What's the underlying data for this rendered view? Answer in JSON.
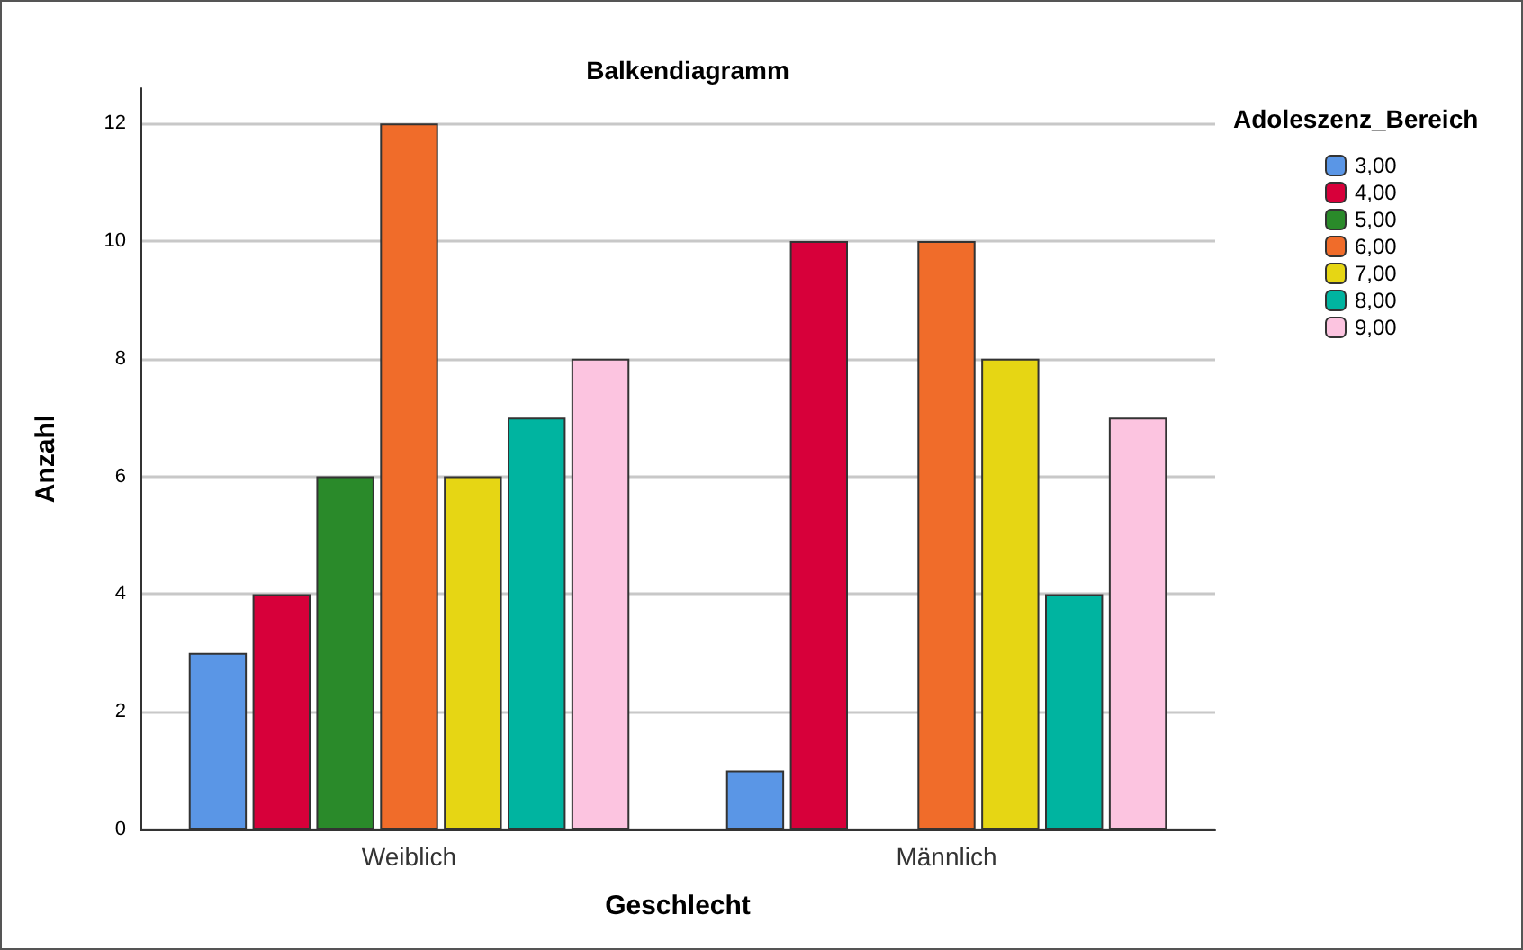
{
  "chart_data": {
    "type": "bar",
    "title": "Balkendiagramm",
    "xlabel": "Geschlecht",
    "ylabel": "Anzahl",
    "legend_title": "Adoleszenz_Bereich",
    "categories": [
      "Weiblich",
      "Männlich"
    ],
    "series": [
      {
        "name": "3,00",
        "color": "#5a96e6",
        "values": [
          3,
          1
        ]
      },
      {
        "name": "4,00",
        "color": "#d7003a",
        "values": [
          4,
          10
        ]
      },
      {
        "name": "5,00",
        "color": "#2a8a2a",
        "values": [
          6,
          null
        ]
      },
      {
        "name": "6,00",
        "color": "#f06c2a",
        "values": [
          12,
          10
        ]
      },
      {
        "name": "7,00",
        "color": "#e6d614",
        "values": [
          6,
          8
        ]
      },
      {
        "name": "8,00",
        "color": "#00b4a0",
        "values": [
          7,
          4
        ]
      },
      {
        "name": "9,00",
        "color": "#fcc4e0",
        "values": [
          8,
          7
        ]
      }
    ],
    "ylim": [
      0,
      12.6
    ],
    "yticks": [
      0,
      2,
      4,
      6,
      8,
      10,
      12
    ],
    "grid": "y",
    "legend": "top right"
  }
}
